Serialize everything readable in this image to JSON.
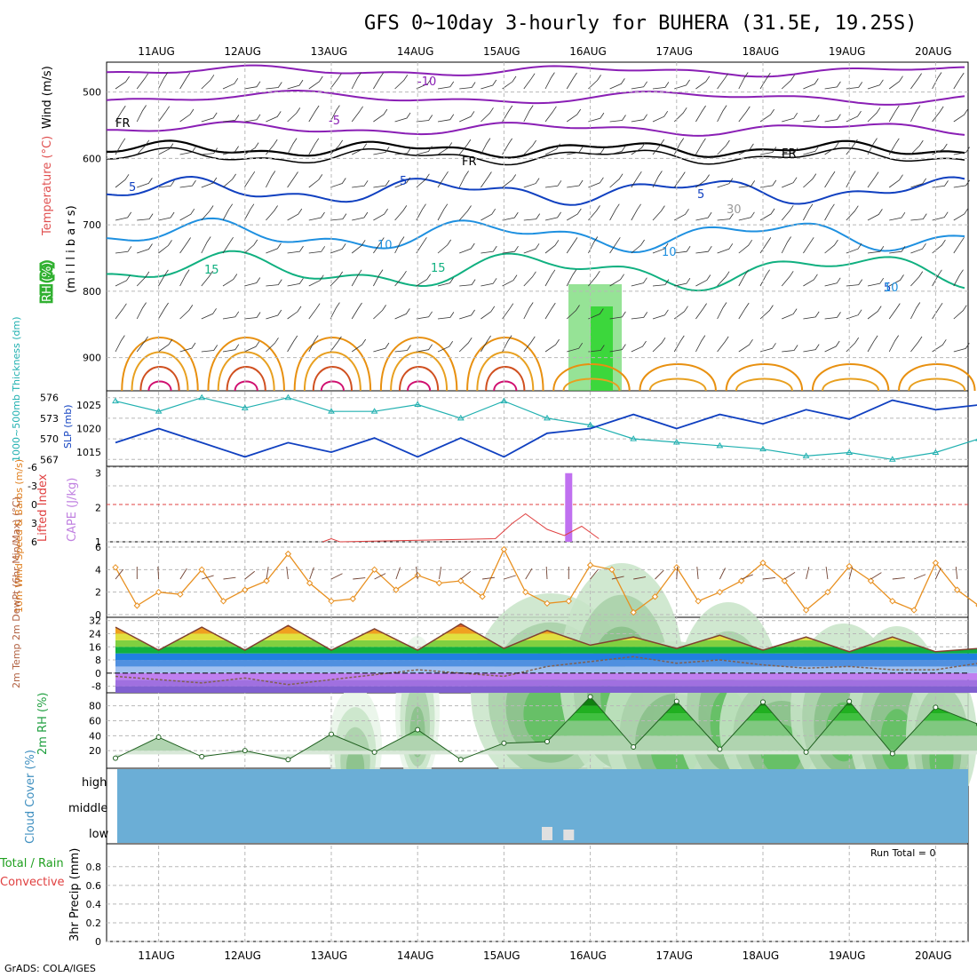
{
  "title": "GFS 0~10day 3-hourly for BUHERA (31.5E, 19.25S)",
  "footer": "GrADS: COLA/IGES",
  "dates": [
    "11AUG",
    "12AUG",
    "13AUG",
    "14AUG",
    "15AUG",
    "16AUG",
    "17AUG",
    "18AUG",
    "19AUG",
    "20AUG"
  ],
  "colors": {
    "purple": "#8a1fb5",
    "black": "#000000",
    "darkblue": "#1040c0",
    "lightblue": "#1e90e0",
    "teal": "#10b080",
    "orange": "#e89010",
    "magenta": "#d01070",
    "green_fill": "#30c030",
    "cloud": "#6baed6"
  },
  "panels": {
    "upper_air": {
      "y_label_1": "Wind (m/s)",
      "y_label_2": "Temperature (°C)",
      "y_label_3": "RH (%)",
      "y_label_mb": "(m i l l i b a r s)",
      "y_ticks": [
        "500",
        "600",
        "700",
        "800",
        "900"
      ],
      "contour_labels": [
        "-10",
        "-5",
        "5",
        "FR",
        "FR",
        "FR",
        "5",
        "5",
        "5",
        "10",
        "10",
        "15",
        "15",
        "10",
        "30"
      ]
    },
    "thickness": {
      "y_label_left": "1000~500mb Thickness (dm)",
      "y_label_right": "SLP (mb)",
      "left_ticks": [
        "576",
        "573",
        "570",
        "567"
      ],
      "right_ticks": [
        "1025",
        "1020",
        "1015"
      ]
    },
    "cape": {
      "y_label_left": "Lifted Index",
      "y_label_right": "CAPE (J/kg)",
      "left_ticks": [
        "-6",
        "-3",
        "0",
        "3",
        "6"
      ],
      "right_ticks": [
        "3",
        "2",
        "1"
      ]
    },
    "wind10m": {
      "y_label": "10m Wind Speed & Barbs (m/s)",
      "y_ticks": [
        "6",
        "4",
        "2",
        "0"
      ]
    },
    "temp2m": {
      "y_label": "2m Temp 2m DewPt (6hr Min/Max) (°C)",
      "y_ticks": [
        "32",
        "24",
        "16",
        "8",
        "0",
        "-8"
      ]
    },
    "rh2m": {
      "y_label": "2m RH (%)",
      "y_ticks": [
        "80",
        "60",
        "40",
        "20"
      ]
    },
    "cloud": {
      "y_label": "Cloud Cover (%)",
      "levels": [
        "high",
        "middle",
        "low"
      ]
    },
    "precip": {
      "y_label_1": "Total / Rain",
      "y_label_2": "Convective",
      "y_label_3": "3hr Precip (mm)",
      "y_ticks": [
        "0.8",
        "0.6",
        "0.4",
        "0.2",
        "0"
      ],
      "run_total": "Run Total = 0"
    }
  },
  "chart_data": [
    {
      "type": "line",
      "title": "1000~500mb Thickness (dm) / SLP (mb)",
      "x_unit": "days from 11AUG 00Z",
      "series": [
        {
          "name": "Thickness",
          "color": "#20b0b0",
          "x": [
            0,
            0.5,
            1,
            1.5,
            2,
            2.5,
            3,
            3.5,
            4,
            4.5,
            5,
            5.5,
            6,
            6.5,
            7,
            7.5,
            8,
            8.5,
            9,
            9.5,
            10
          ],
          "values": [
            575.5,
            574,
            576,
            574.5,
            576,
            574,
            574,
            575,
            573,
            575.5,
            573,
            572,
            570,
            569.5,
            569,
            568.5,
            567.5,
            568,
            567,
            568,
            570
          ]
        },
        {
          "name": "SLP",
          "color": "#1040c0",
          "x": [
            0,
            0.5,
            1,
            1.5,
            2,
            2.5,
            3,
            3.5,
            4,
            4.5,
            5,
            5.5,
            6,
            6.5,
            7,
            7.5,
            8,
            8.5,
            9,
            9.5,
            10
          ],
          "values": [
            1017,
            1020,
            1017,
            1014,
            1017,
            1015,
            1018,
            1014,
            1018,
            1014,
            1019,
            1020,
            1023,
            1020,
            1023,
            1021,
            1024,
            1022,
            1026,
            1024,
            1025
          ]
        }
      ],
      "ylim_left": [
        566,
        577
      ],
      "ylim_right": [
        1012,
        1028
      ]
    },
    {
      "type": "bar",
      "title": "Lifted Index / CAPE (J/kg)",
      "series": [
        {
          "name": "CAPE",
          "x": [
            5.25
          ],
          "values": [
            3.0
          ]
        }
      ],
      "lifted_index": {
        "x": [
          2.4,
          2.5,
          2.6,
          4.4,
          4.6,
          4.75,
          5.0,
          5.2,
          5.4,
          5.6
        ],
        "values": [
          6,
          5.5,
          6,
          5.5,
          3,
          1.5,
          4,
          5,
          3.5,
          5.5
        ]
      },
      "ylim_cape": [
        1,
        3.2
      ]
    },
    {
      "type": "line",
      "title": "10m Wind Speed & Barbs (m/s)",
      "series": [
        {
          "name": "10m Wind Speed",
          "color": "#e89020",
          "x": [
            0,
            0.25,
            0.5,
            0.75,
            1,
            1.25,
            1.5,
            1.75,
            2,
            2.25,
            2.5,
            2.75,
            3,
            3.25,
            3.5,
            3.75,
            4,
            4.25,
            4.5,
            4.75,
            5,
            5.25,
            5.5,
            5.75,
            6,
            6.25,
            6.5,
            6.75,
            7,
            7.25,
            7.5,
            7.75,
            8,
            8.25,
            8.5,
            8.75,
            9,
            9.25,
            9.5,
            9.75,
            10
          ],
          "values": [
            4.2,
            0.8,
            2,
            1.8,
            4,
            1.2,
            2.2,
            3,
            5.4,
            2.8,
            1.2,
            1.4,
            4,
            2.2,
            3.5,
            2.8,
            3,
            1.6,
            5.8,
            2,
            1,
            1.2,
            4.4,
            4,
            0.2,
            1.6,
            4.2,
            1.2,
            2,
            3,
            4.6,
            3,
            0.4,
            2,
            4.3,
            3,
            1.2,
            0.4,
            4.6,
            2.2,
            0.8
          ]
        }
      ],
      "ylim": [
        0,
        6
      ]
    },
    {
      "type": "area",
      "title": "2m Temp / 2m DewPt (°C)",
      "series": [
        {
          "name": "2m Temp",
          "x": [
            0,
            0.5,
            1,
            1.5,
            2,
            2.5,
            3,
            3.5,
            4,
            4.5,
            5,
            5.5,
            6,
            6.5,
            7,
            7.5,
            8,
            8.5,
            9,
            9.5,
            10
          ],
          "values": [
            28,
            14,
            28,
            14,
            29,
            14,
            27,
            14,
            30,
            15,
            26,
            17,
            22,
            15,
            23,
            14,
            22,
            13,
            22,
            13,
            15
          ]
        },
        {
          "name": "2m DewPt",
          "x": [
            0,
            0.5,
            1,
            1.5,
            2,
            2.5,
            3,
            3.5,
            4,
            4.5,
            5,
            5.5,
            6,
            6.5,
            7,
            7.5,
            8,
            8.5,
            9,
            9.5,
            10
          ],
          "values": [
            -2,
            -4,
            -6,
            -3,
            -7,
            -4,
            -1,
            2,
            0,
            -2,
            4,
            7,
            10,
            6,
            8,
            5,
            3,
            4,
            2,
            2,
            6
          ]
        }
      ],
      "ylim": [
        -12,
        34
      ]
    },
    {
      "type": "area",
      "title": "2m RH (%)",
      "series": [
        {
          "name": "2m RH",
          "x": [
            0,
            0.5,
            1,
            1.5,
            2,
            2.5,
            3,
            3.5,
            4,
            4.5,
            5,
            5.5,
            6,
            6.5,
            7,
            7.5,
            8,
            8.5,
            9,
            9.5,
            10
          ],
          "values": [
            10,
            38,
            12,
            20,
            8,
            42,
            18,
            48,
            8,
            30,
            32,
            92,
            25,
            86,
            22,
            85,
            18,
            86,
            16,
            78,
            55
          ]
        }
      ],
      "ylim": [
        0,
        95
      ]
    }
  ]
}
